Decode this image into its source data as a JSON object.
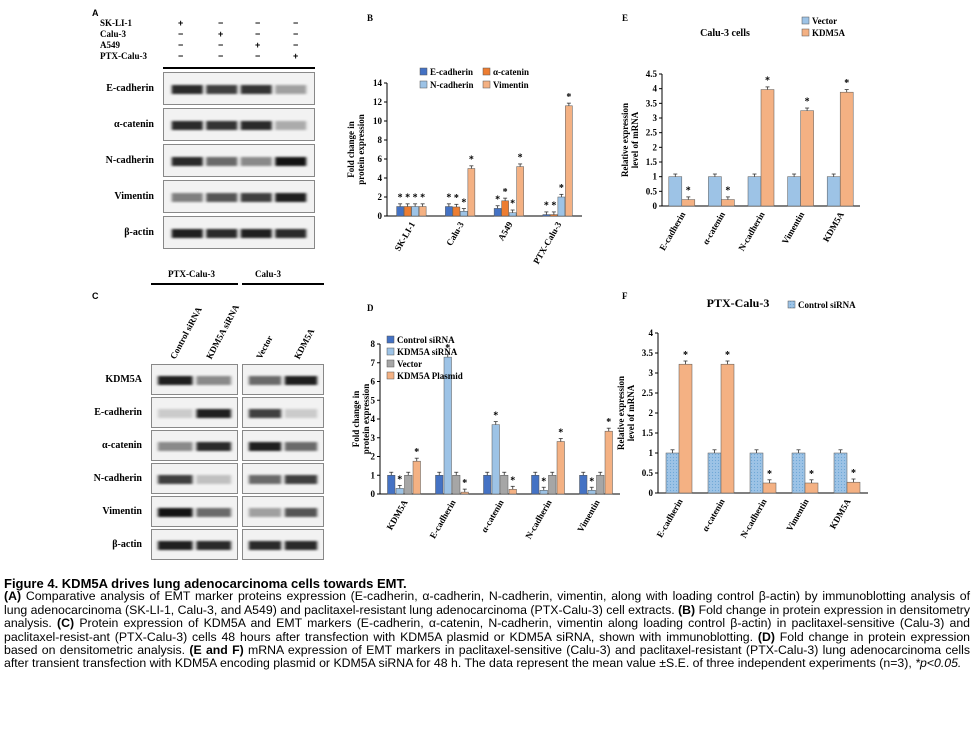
{
  "colors": {
    "ecadherin": "#4472c4",
    "acatenin": "#ed7d31",
    "ncadherin": "#9dc3e6",
    "vimentin": "#f4b183",
    "control_sirna": "#4472c4",
    "kdm5a_sirna": "#9dc3e6",
    "vector_grey": "#a6a6a6",
    "kdm5a_plasmid": "#f4b183",
    "vector_blue": "#9dc3e6",
    "kdm5a_orange": "#f4b183"
  },
  "panelA": {
    "letter": "A",
    "conditions": [
      "SK-LI-1",
      "Calu-3",
      "A549",
      "PTX-Calu-3"
    ],
    "signs": [
      [
        "+",
        "−",
        "−",
        "−"
      ],
      [
        "−",
        "+",
        "−",
        "−"
      ],
      [
        "−",
        "−",
        "+",
        "−"
      ],
      [
        "−",
        "−",
        "−",
        "+"
      ]
    ],
    "rows": [
      "E-cadherin",
      "α-catenin",
      "N-cadherin",
      "Vimentin",
      "β-actin"
    ]
  },
  "panelC": {
    "letter": "C",
    "group1": "PTX-Calu-3",
    "group2": "Calu-3",
    "lanes": [
      "Control siRNA",
      "KDM5A siRNA",
      "Vector",
      "KDM5A"
    ],
    "rows": [
      "KDM5A",
      "E-cadherin",
      "α-catenin",
      "N-cadherin",
      "Vimentin",
      "β-actin"
    ]
  },
  "panelB": {
    "letter": "B",
    "star": "*"
  },
  "panelD": {
    "letter": "D",
    "star": "*"
  },
  "panelE": {
    "letter": "E",
    "star": "*"
  },
  "panelF": {
    "letter": "F",
    "star": "*"
  },
  "chart_data": [
    {
      "id": "B",
      "type": "bar",
      "title": "",
      "ylabel": "Fold change in protein expression",
      "categories": [
        "SK-LI-1",
        "Calu-3",
        "A549",
        "PTX-Calu-3"
      ],
      "ylim": [
        0,
        14
      ],
      "yticks": [
        0,
        2,
        4,
        6,
        8,
        10,
        12,
        14
      ],
      "legend": "top",
      "series": [
        {
          "name": "E-cadherin",
          "values": [
            1.0,
            1.0,
            0.8,
            0.15
          ]
        },
        {
          "name": "α-catenin",
          "values": [
            1.0,
            0.95,
            1.6,
            0.15
          ]
        },
        {
          "name": "N-cadherin",
          "values": [
            1.0,
            0.5,
            0.35,
            2.0
          ]
        },
        {
          "name": "Vimentin",
          "values": [
            1.0,
            5.0,
            5.2,
            11.6
          ]
        }
      ]
    },
    {
      "id": "D",
      "type": "bar",
      "title": "",
      "ylabel": "Fold change in protein expression",
      "categories": [
        "KDM5A",
        "E-cadherin",
        "α-catenin",
        "N-cadherin",
        "Vimentin"
      ],
      "ylim": [
        0,
        8
      ],
      "yticks": [
        0,
        1,
        2,
        3,
        4,
        5,
        6,
        7,
        8
      ],
      "legend": "top-left",
      "series": [
        {
          "name": "Control siRNA",
          "values": [
            1.0,
            1.0,
            1.0,
            1.0,
            1.0
          ]
        },
        {
          "name": "KDM5A siRNA",
          "values": [
            0.3,
            7.3,
            3.7,
            0.2,
            0.2
          ]
        },
        {
          "name": "Vector",
          "values": [
            1.0,
            1.0,
            1.0,
            1.0,
            1.0
          ]
        },
        {
          "name": "KDM5A Plasmid",
          "values": [
            1.75,
            0.1,
            0.25,
            2.8,
            3.35
          ]
        }
      ]
    },
    {
      "id": "E",
      "type": "bar",
      "title": "Calu-3 cells",
      "ylabel": "Relative expression level of mRNA",
      "categories": [
        "E-cadherin",
        "α-catenin",
        "N-cadherin",
        "Vimentin",
        "KDM5A"
      ],
      "ylim": [
        0,
        4.5
      ],
      "yticks": [
        0,
        0.5,
        1,
        1.5,
        2,
        2.5,
        3,
        3.5,
        4,
        4.5
      ],
      "legend": "top-right",
      "series": [
        {
          "name": "Vector",
          "values": [
            1.0,
            1.0,
            1.0,
            1.0,
            1.0
          ]
        },
        {
          "name": "KDM5A",
          "values": [
            0.22,
            0.22,
            3.97,
            3.25,
            3.88
          ]
        }
      ]
    },
    {
      "id": "F",
      "type": "bar",
      "title": "PTX-Calu-3",
      "ylabel": "Relative expression level of mRNA",
      "categories": [
        "E-cadherin",
        "α-catenin",
        "N-cadherin",
        "Vimentin",
        "KDM5A"
      ],
      "ylim": [
        0,
        4
      ],
      "yticks": [
        0,
        0.5,
        1,
        1.5,
        2,
        2.5,
        3,
        3.5,
        4
      ],
      "legend": "top-right",
      "series": [
        {
          "name": "Control siRNA",
          "values": [
            1.0,
            1.0,
            1.0,
            1.0,
            1.0
          ]
        },
        {
          "name": "",
          "values": [
            3.22,
            3.22,
            0.25,
            0.25,
            0.27
          ]
        }
      ]
    }
  ],
  "caption": {
    "title": "Figure 4. KDM5A drives lung adenocarcinoma cells towards EMT.",
    "A_label": "(A)",
    "A_text": " Comparative analysis of EMT marker proteins expression (E-cadherin, α-cadherin, N-cadherin, vimentin, along with loading control β-actin) by immunoblotting analysis of lung adenocarcinoma (SK-LI-1, Calu-3, and A549) and paclitaxel-resistant lung adenocarcinoma (PTX-Calu-3) cell extracts. ",
    "B_label": "(B)",
    "B_text": " Fold change in protein expression in densitometry analysis. ",
    "C_label": "(C)",
    "C_text": " Protein expression of KDM5A and EMT markers (E-cadherin, α-catenin, N-cadherin, vimentin along loading control β-actin) in paclitaxel-sensitive (Calu-3) and paclitaxel-resist-ant (PTX-Calu-3) cells 48 hours after transfection with KDM5A plasmid or KDM5A siRNA, shown with immunoblotting. ",
    "D_label": "(D)",
    "D_text": " Fold change in protein expression based on densitometric analysis. ",
    "EF_label": "(E and F)",
    "EF_text": " mRNA expression of EMT markers in paclitaxel-sensitive (Calu-3) and paclitaxel-resistant (PTX-Calu-3) lung adenocarcinoma cells after transient transfection with KDM5A encoding plasmid or KDM5A siRNA for 48 h. The data represent the mean value ±S.E. of three independent experiments (n=3), ",
    "p_text": "*p<0.05."
  }
}
